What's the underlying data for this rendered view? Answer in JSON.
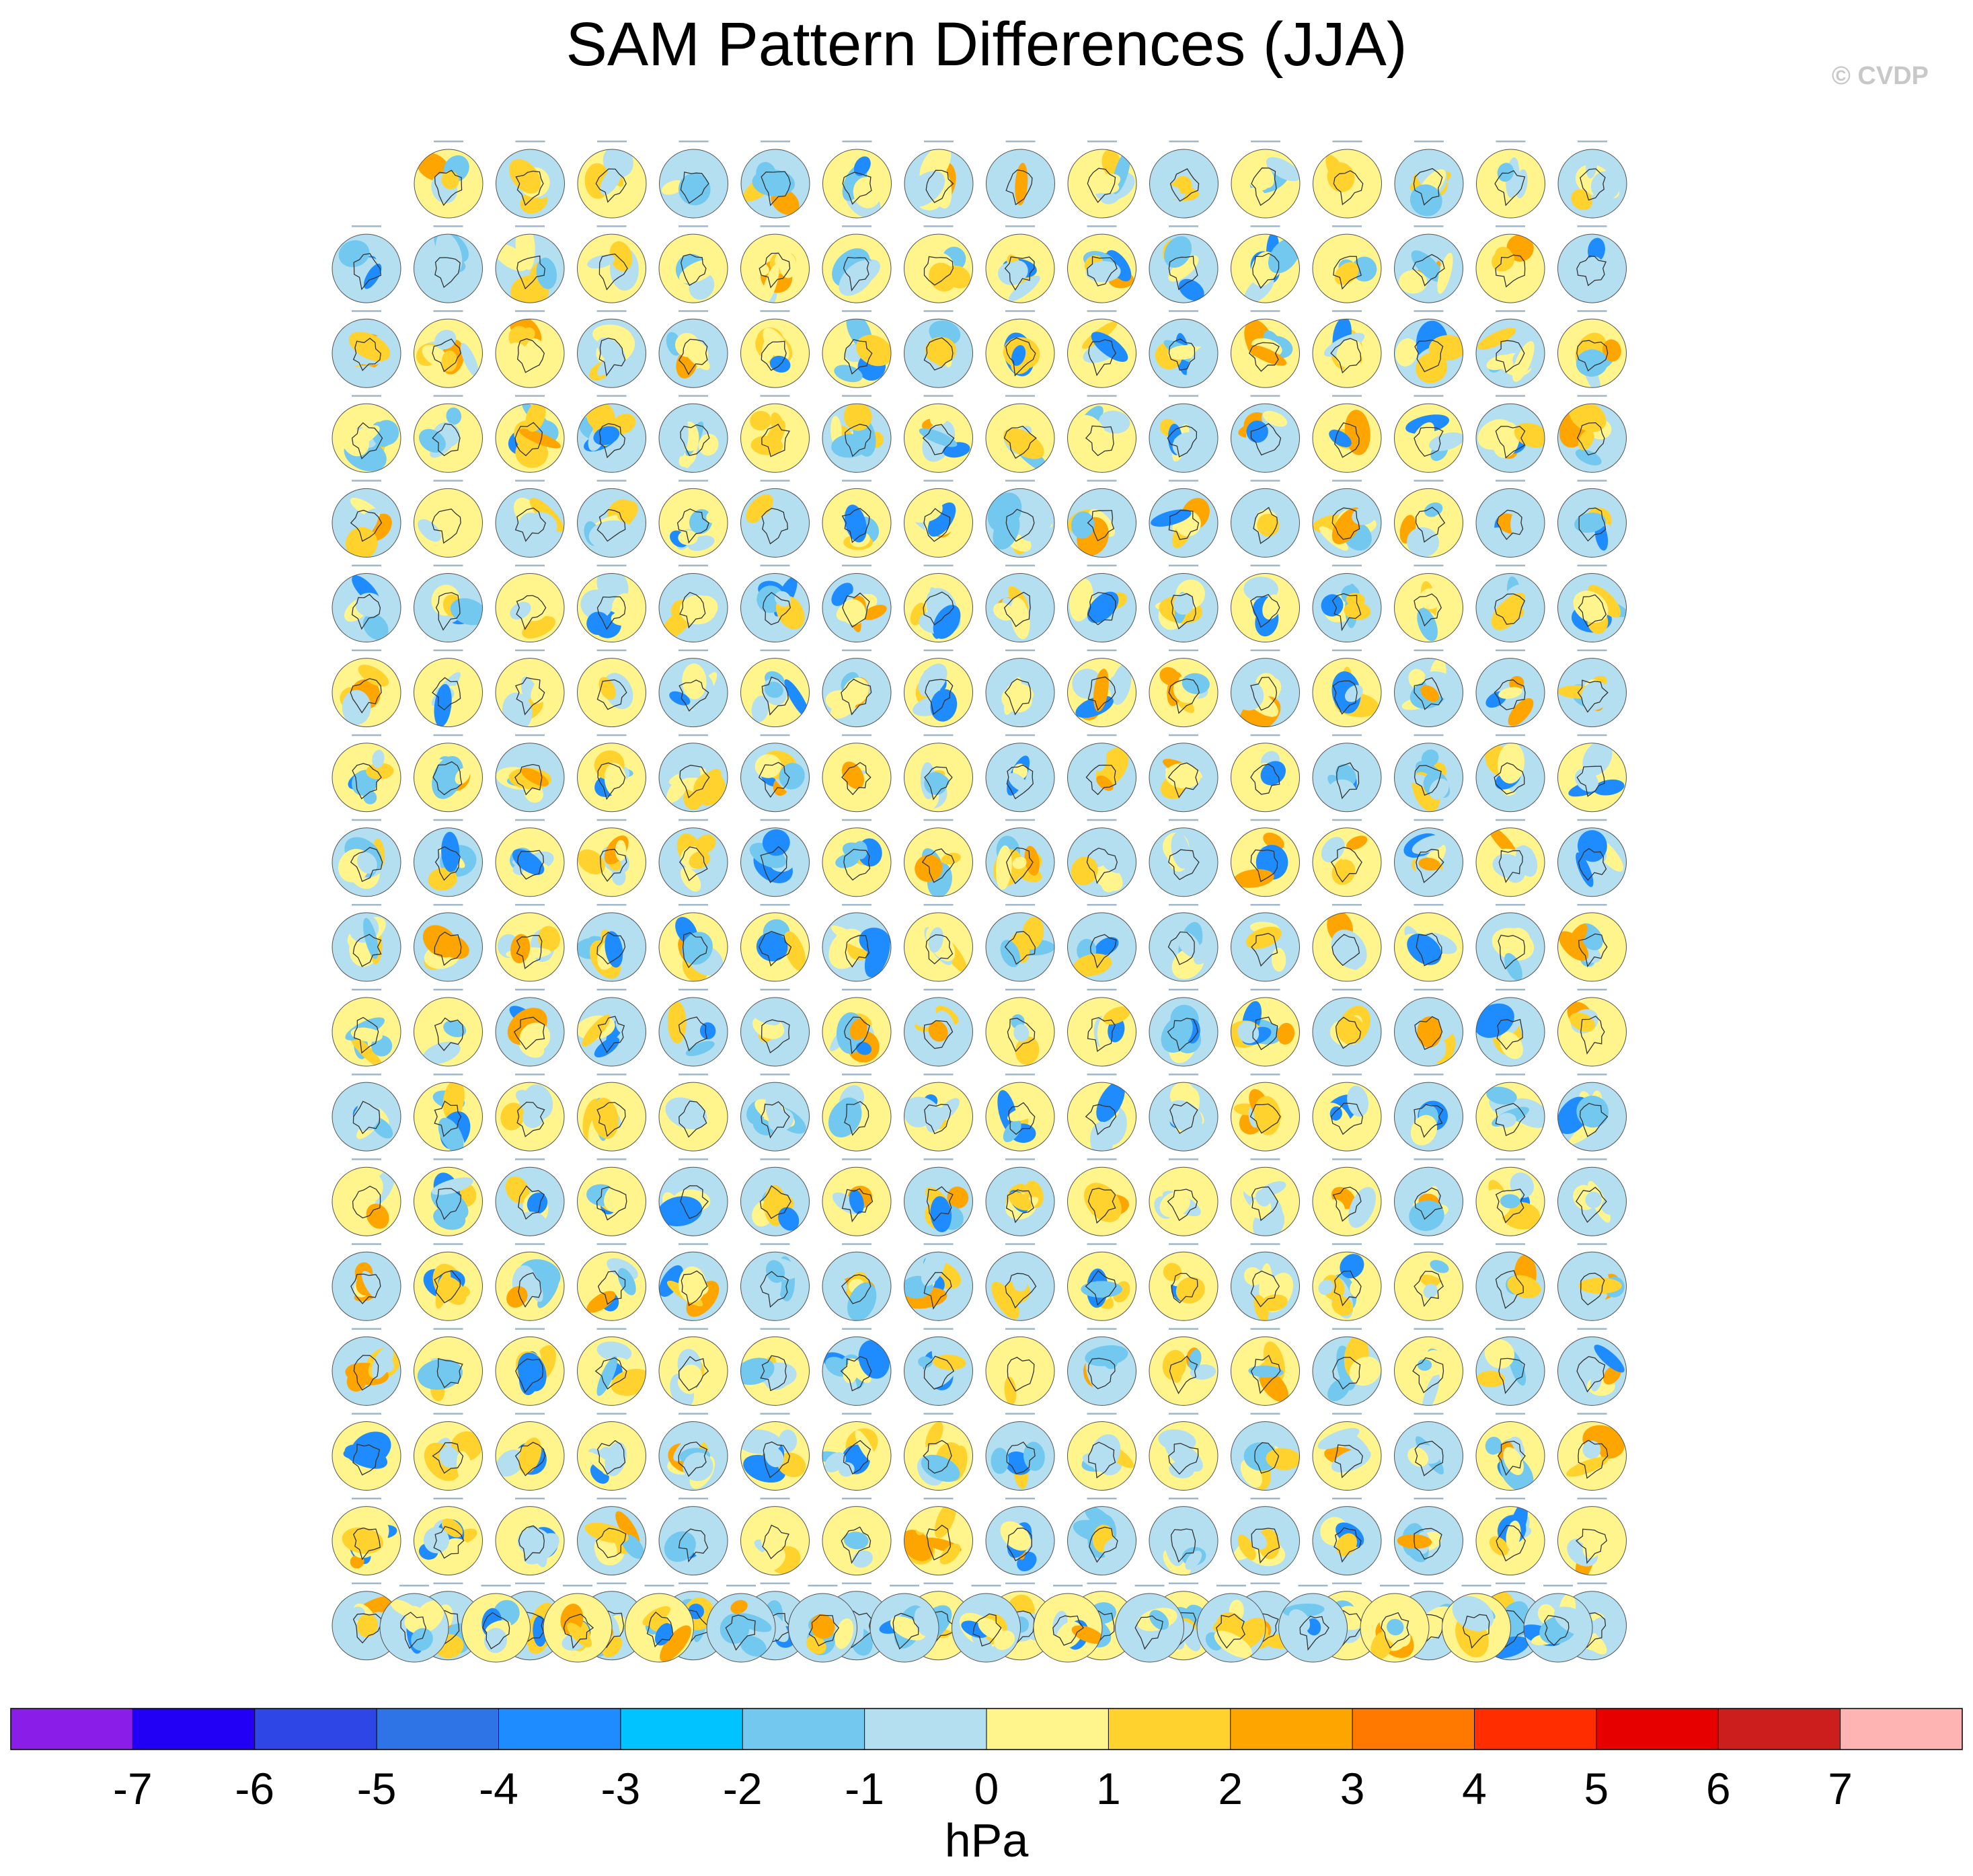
{
  "title": "SAM Pattern Differences (JJA)",
  "credit": "© CVDP",
  "chart_data": {
    "type": "heatmap",
    "title": "SAM Pattern Differences (JJA)",
    "panel_rows": [
      15,
      16,
      16,
      16,
      16,
      16,
      16,
      16,
      16,
      16,
      16,
      16,
      16,
      16,
      16,
      16,
      16,
      16,
      15
    ],
    "panel_count": 302,
    "colorbar": {
      "label": "hPa",
      "tick_labels": [
        "-7",
        "-6",
        "-5",
        "-4",
        "-3",
        "-2",
        "-1",
        "0",
        "1",
        "2",
        "3",
        "4",
        "5",
        "6",
        "7"
      ],
      "levels": [
        -7,
        -6,
        -5,
        -4,
        -3,
        -2,
        -1,
        0,
        1,
        2,
        3,
        4,
        5,
        6,
        7
      ],
      "colors": [
        "#8a1ee8",
        "#2200f5",
        "#2f46e6",
        "#2e74e6",
        "#1e8cff",
        "#00c3ff",
        "#73c8f0",
        "#b3dff0",
        "#fff58c",
        "#ffd22d",
        "#ffa500",
        "#ff7800",
        "#ff2d00",
        "#e60000",
        "#cd1e1e",
        "#ffb4b4"
      ]
    }
  }
}
